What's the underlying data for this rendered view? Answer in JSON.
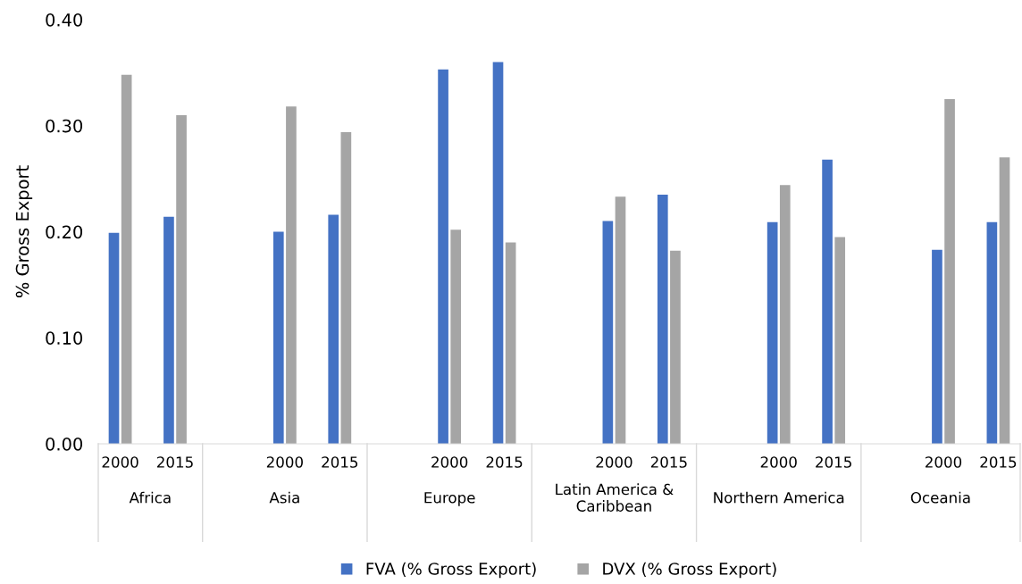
{
  "chart_data": {
    "type": "bar",
    "ylabel": "% Gross Export",
    "categories": [
      "2000",
      "2015",
      "2000",
      "2015",
      "2000",
      "2015",
      "2000",
      "2015",
      "2000",
      "2015",
      "2000",
      "2015"
    ],
    "annotations": [
      "Africa",
      "Asia",
      "Europe",
      "Latin America & Caribbean",
      "Northern America",
      "Oceania"
    ],
    "series": [
      {
        "name": "FVA (% Gross Export)",
        "color": "#4472c4",
        "values": [
          0.199,
          0.214,
          0.2,
          0.216,
          0.353,
          0.36,
          0.21,
          0.235,
          0.209,
          0.268,
          0.183,
          0.209
        ]
      },
      {
        "name": "DVX (% Gross Export)",
        "color": "#a5a5a5",
        "values": [
          0.348,
          0.31,
          0.318,
          0.294,
          0.202,
          0.19,
          0.233,
          0.182,
          0.244,
          0.195,
          0.325,
          0.27
        ]
      }
    ],
    "ylim": [
      0,
      0.4
    ],
    "yticks": [
      {
        "value": 0,
        "label": "0.00"
      },
      {
        "value": 0.1,
        "label": "0.10"
      },
      {
        "value": 0.2,
        "label": "0.20"
      },
      {
        "value": 0.3,
        "label": "0.30"
      },
      {
        "value": 0.4,
        "label": "0.40"
      }
    ],
    "grid": false,
    "legend": "bottom"
  }
}
